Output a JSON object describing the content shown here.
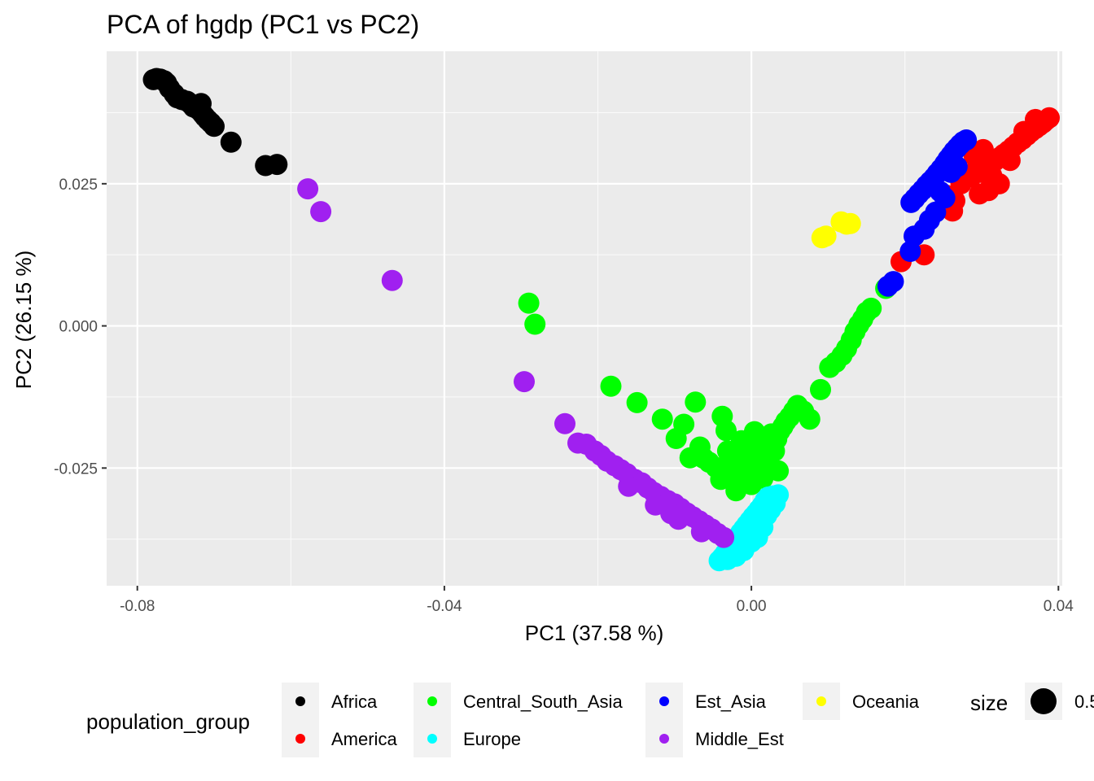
{
  "chart_data": {
    "type": "scatter",
    "title": "PCA of hgdp (PC1 vs PC2)",
    "xlabel": "PC1 (37.58 %)",
    "ylabel": "PC2 (26.15 %)",
    "xlim": [
      -0.084,
      0.0405
    ],
    "ylim": [
      -0.0457,
      0.0483
    ],
    "x_ticks": [
      {
        "value": -0.08,
        "label": "-0.08"
      },
      {
        "value": -0.04,
        "label": "-0.04"
      },
      {
        "value": 0.0,
        "label": "0.00"
      },
      {
        "value": 0.04,
        "label": "0.04"
      }
    ],
    "y_ticks": [
      {
        "value": -0.025,
        "label": "-0.025"
      },
      {
        "value": 0.0,
        "label": "0.000"
      },
      {
        "value": 0.025,
        "label": "0.025"
      }
    ],
    "grid": true,
    "legend": {
      "position": "bottom",
      "title": "population_group",
      "size_title": "size",
      "size_label": "0.5"
    },
    "series": [
      {
        "name": "Africa",
        "color": "#000000",
        "points": [
          [
            -0.0779,
            0.0433
          ],
          [
            -0.0775,
            0.0435
          ],
          [
            -0.077,
            0.0434
          ],
          [
            -0.0765,
            0.0431
          ],
          [
            -0.0762,
            0.0427
          ],
          [
            -0.0758,
            0.0418
          ],
          [
            -0.0752,
            0.0408
          ],
          [
            -0.0748,
            0.0401
          ],
          [
            -0.0742,
            0.0398
          ],
          [
            -0.0735,
            0.0395
          ],
          [
            -0.073,
            0.039
          ],
          [
            -0.0727,
            0.0385
          ],
          [
            -0.0722,
            0.0382
          ],
          [
            -0.0718,
            0.0378
          ],
          [
            -0.0715,
            0.0373
          ],
          [
            -0.0712,
            0.0368
          ],
          [
            -0.0708,
            0.0362
          ],
          [
            -0.0704,
            0.0357
          ],
          [
            -0.07,
            0.0351
          ],
          [
            -0.0717,
            0.0391
          ],
          [
            -0.0678,
            0.0323
          ],
          [
            -0.0633,
            0.0282
          ],
          [
            -0.0618,
            0.0284
          ]
        ]
      },
      {
        "name": "America",
        "color": "#ff0000",
        "points": [
          [
            0.0388,
            0.0366
          ],
          [
            0.0384,
            0.0362
          ],
          [
            0.038,
            0.0357
          ],
          [
            0.0375,
            0.0352
          ],
          [
            0.037,
            0.0347
          ],
          [
            0.0364,
            0.0341
          ],
          [
            0.0359,
            0.0335
          ],
          [
            0.0353,
            0.0328
          ],
          [
            0.0347,
            0.0322
          ],
          [
            0.0341,
            0.0315
          ],
          [
            0.0335,
            0.0308
          ],
          [
            0.0329,
            0.0302
          ],
          [
            0.0323,
            0.0296
          ],
          [
            0.0317,
            0.029
          ],
          [
            0.0311,
            0.0282
          ],
          [
            0.0305,
            0.0276
          ],
          [
            0.03,
            0.027
          ],
          [
            0.0295,
            0.0283
          ],
          [
            0.0313,
            0.0265
          ],
          [
            0.0323,
            0.025
          ],
          [
            0.0309,
            0.0238
          ],
          [
            0.0297,
            0.0232
          ],
          [
            0.0265,
            0.022
          ],
          [
            0.0253,
            0.023
          ],
          [
            0.0262,
            0.0202
          ],
          [
            0.0225,
            0.0125
          ],
          [
            0.0195,
            0.0113
          ],
          [
            0.029,
            0.03
          ],
          [
            0.0286,
            0.0262
          ],
          [
            0.0337,
            0.0291
          ],
          [
            0.0273,
            0.025
          ],
          [
            0.0302,
            0.031
          ],
          [
            0.037,
            0.0363
          ],
          [
            0.0355,
            0.0342
          ]
        ]
      },
      {
        "name": "Central_South_Asia",
        "color": "#00ff00",
        "points": [
          [
            -0.029,
            0.004
          ],
          [
            -0.0282,
            0.0003
          ],
          [
            -0.0183,
            -0.0106
          ],
          [
            -0.0149,
            -0.0135
          ],
          [
            -0.0116,
            -0.0164
          ],
          [
            -0.0088,
            -0.0173
          ],
          [
            -0.0098,
            -0.0198
          ],
          [
            -0.0073,
            -0.0134
          ],
          [
            -0.0067,
            -0.0213
          ],
          [
            -0.0062,
            -0.0233
          ],
          [
            -0.0055,
            -0.024
          ],
          [
            -0.0046,
            -0.0249
          ],
          [
            -0.0038,
            -0.0159
          ],
          [
            -0.0033,
            -0.0184
          ],
          [
            -0.0031,
            -0.022
          ],
          [
            -0.0026,
            -0.0232
          ],
          [
            -0.0023,
            -0.025
          ],
          [
            -0.002,
            -0.0265
          ],
          [
            -0.0017,
            -0.0276
          ],
          [
            -0.0013,
            -0.0202
          ],
          [
            -0.001,
            -0.0224
          ],
          [
            -0.0006,
            -0.0238
          ],
          [
            -0.0003,
            -0.0261
          ],
          [
            0.0,
            -0.0279
          ],
          [
            0.0004,
            -0.0186
          ],
          [
            0.0006,
            -0.0212
          ],
          [
            0.0009,
            -0.0233
          ],
          [
            0.0012,
            -0.0254
          ],
          [
            0.0015,
            -0.0268
          ],
          [
            0.0018,
            -0.021
          ],
          [
            0.0021,
            -0.0231
          ],
          [
            0.0024,
            -0.0252
          ],
          [
            0.0026,
            -0.019
          ],
          [
            0.003,
            -0.022
          ],
          [
            0.0033,
            -0.0199
          ],
          [
            0.0037,
            -0.0185
          ],
          [
            0.0041,
            -0.0177
          ],
          [
            0.0045,
            -0.0168
          ],
          [
            0.005,
            -0.016
          ],
          [
            0.0055,
            -0.015
          ],
          [
            0.006,
            -0.014
          ],
          [
            0.0068,
            -0.015
          ],
          [
            0.0076,
            -0.0164
          ],
          [
            0.009,
            -0.0112
          ],
          [
            0.0102,
            -0.0073
          ],
          [
            0.011,
            -0.0064
          ],
          [
            0.0118,
            -0.0052
          ],
          [
            0.0124,
            -0.004
          ],
          [
            0.013,
            -0.0025
          ],
          [
            0.0135,
            -0.001
          ],
          [
            0.014,
            0.0002
          ],
          [
            0.0145,
            0.0012
          ],
          [
            0.015,
            0.0024
          ],
          [
            0.0156,
            0.0031
          ],
          [
            0.0175,
            0.0066
          ],
          [
            -0.008,
            -0.0232
          ],
          [
            -0.004,
            -0.027
          ],
          [
            0.0,
            -0.025
          ],
          [
            0.0035,
            -0.0255
          ],
          [
            -0.002,
            -0.029
          ]
        ]
      },
      {
        "name": "Europe",
        "color": "#00ffff",
        "points": [
          [
            0.0035,
            -0.0297
          ],
          [
            0.0028,
            -0.0299
          ],
          [
            0.0022,
            -0.0301
          ],
          [
            0.0018,
            -0.0307
          ],
          [
            0.0014,
            -0.0316
          ],
          [
            0.001,
            -0.0323
          ],
          [
            0.0006,
            -0.033
          ],
          [
            0.0002,
            -0.0336
          ],
          [
            -0.0002,
            -0.0343
          ],
          [
            -0.0006,
            -0.035
          ],
          [
            -0.001,
            -0.0357
          ],
          [
            -0.0014,
            -0.0364
          ],
          [
            -0.0018,
            -0.0372
          ],
          [
            -0.0022,
            -0.0379
          ],
          [
            -0.0026,
            -0.0386
          ],
          [
            -0.003,
            -0.0393
          ],
          [
            -0.0034,
            -0.04
          ],
          [
            -0.0038,
            -0.0407
          ],
          [
            -0.0042,
            -0.0413
          ],
          [
            -0.0031,
            -0.0411
          ],
          [
            -0.002,
            -0.0405
          ],
          [
            -0.001,
            -0.0395
          ],
          [
            0.0,
            -0.038
          ],
          [
            0.0008,
            -0.0372
          ],
          [
            0.0015,
            -0.0354
          ],
          [
            0.002,
            -0.0333
          ],
          [
            0.0025,
            -0.0323
          ],
          [
            0.0031,
            -0.0312
          ],
          [
            0.0003,
            -0.0362
          ],
          [
            -0.0016,
            -0.0395
          ]
        ]
      },
      {
        "name": "Est_Asia",
        "color": "#0000ff",
        "points": [
          [
            0.028,
            0.0327
          ],
          [
            0.0276,
            0.0324
          ],
          [
            0.0272,
            0.0319
          ],
          [
            0.0268,
            0.0313
          ],
          [
            0.0264,
            0.0307
          ],
          [
            0.026,
            0.03
          ],
          [
            0.0256,
            0.0293
          ],
          [
            0.0252,
            0.0285
          ],
          [
            0.0247,
            0.0276
          ],
          [
            0.0242,
            0.0268
          ],
          [
            0.0238,
            0.0261
          ],
          [
            0.0233,
            0.0254
          ],
          [
            0.0228,
            0.0247
          ],
          [
            0.0223,
            0.0239
          ],
          [
            0.0218,
            0.0232
          ],
          [
            0.0213,
            0.0224
          ],
          [
            0.0208,
            0.0217
          ],
          [
            0.0252,
            0.0225
          ],
          [
            0.024,
            0.02
          ],
          [
            0.0232,
            0.0186
          ],
          [
            0.0225,
            0.017
          ],
          [
            0.0212,
            0.0158
          ],
          [
            0.0207,
            0.0131
          ],
          [
            0.0185,
            0.0078
          ],
          [
            0.0178,
            0.007
          ],
          [
            0.0268,
            0.028
          ],
          [
            0.026,
            0.027
          ],
          [
            0.0246,
            0.0236
          ]
        ]
      },
      {
        "name": "Middle_Est",
        "color": "#a020f0",
        "points": [
          [
            -0.0578,
            0.0241
          ],
          [
            -0.0561,
            0.0201
          ],
          [
            -0.0468,
            0.008
          ],
          [
            -0.0296,
            -0.0098
          ],
          [
            -0.0243,
            -0.0172
          ],
          [
            -0.0226,
            -0.0206
          ],
          [
            -0.0215,
            -0.0208
          ],
          [
            -0.0204,
            -0.022
          ],
          [
            -0.0196,
            -0.0228
          ],
          [
            -0.0188,
            -0.0238
          ],
          [
            -0.0178,
            -0.0246
          ],
          [
            -0.017,
            -0.0253
          ],
          [
            -0.0162,
            -0.026
          ],
          [
            -0.0152,
            -0.027
          ],
          [
            -0.0143,
            -0.0276
          ],
          [
            -0.0135,
            -0.0285
          ],
          [
            -0.0127,
            -0.0293
          ],
          [
            -0.0118,
            -0.03
          ],
          [
            -0.0109,
            -0.0307
          ],
          [
            -0.01,
            -0.0313
          ],
          [
            -0.0092,
            -0.0321
          ],
          [
            -0.0084,
            -0.0329
          ],
          [
            -0.0076,
            -0.0336
          ],
          [
            -0.0068,
            -0.0343
          ],
          [
            -0.006,
            -0.035
          ],
          [
            -0.0052,
            -0.0357
          ],
          [
            -0.0044,
            -0.0365
          ],
          [
            -0.0036,
            -0.0372
          ],
          [
            -0.0095,
            -0.034
          ],
          [
            -0.0125,
            -0.0315
          ],
          [
            -0.016,
            -0.0282
          ],
          [
            -0.0105,
            -0.033
          ],
          [
            -0.0065,
            -0.0362
          ]
        ]
      },
      {
        "name": "Oceania",
        "color": "#ffff00",
        "points": [
          [
            0.0092,
            0.0155
          ],
          [
            0.0097,
            0.0158
          ],
          [
            0.0117,
            0.0183
          ],
          [
            0.0124,
            0.0179
          ],
          [
            0.0129,
            0.018
          ]
        ]
      }
    ]
  }
}
